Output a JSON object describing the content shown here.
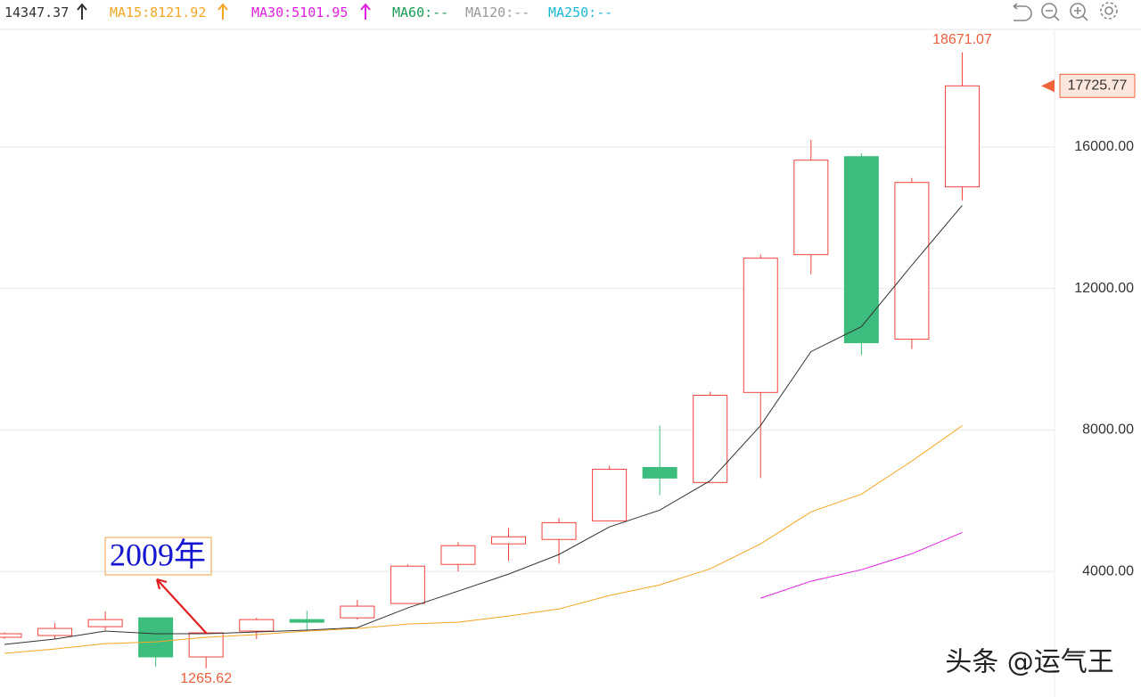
{
  "chart_data": {
    "type": "candlestick",
    "open": [
      2140,
      2190,
      2440,
      2690,
      1585,
      2315,
      2640,
      2690,
      3095,
      4200,
      4780,
      4905,
      5430,
      6940,
      6515,
      9060,
      12955,
      15725,
      10565,
      14870
    ],
    "high": [
      2280,
      2540,
      2870,
      2690,
      2265,
      2690,
      2890,
      3195,
      4200,
      4830,
      5230,
      5510,
      6990,
      8125,
      9080,
      12955,
      16200,
      15825,
      15120,
      18671.07
    ],
    "low": [
      2100,
      2090,
      2340,
      1310,
      1265.62,
      2090,
      2315,
      2640,
      3095,
      4000,
      4300,
      4220,
      5430,
      6160,
      6515,
      6640,
      12400,
      10115,
      10290,
      14490
    ],
    "close": [
      2240,
      2390,
      2640,
      1585,
      2265,
      2640,
      2565,
      3020,
      4150,
      4730,
      4980,
      5380,
      6890,
      6640,
      8980,
      12855,
      15625,
      10465,
      14995,
      17725.77
    ],
    "up_color": "#f0433c",
    "down_color": "#3dbd7d",
    "series": [
      {
        "color": "#333333",
        "value_label": "14347.37",
        "values": [
          1937,
          2090,
          2315,
          2240,
          2240,
          2290,
          2340,
          2415,
          2970,
          3445,
          3925,
          4480,
          5260,
          5735,
          6565,
          8125,
          10215,
          10920,
          12655,
          14347.37
        ]
      },
      {
        "name": "MA15:",
        "color": "#f5a623",
        "value_label": "8121.92",
        "values": [
          1685,
          1810,
          1960,
          2010,
          2140,
          2215,
          2315,
          2390,
          2515,
          2565,
          2740,
          2940,
          3320,
          3620,
          4075,
          4780,
          5685,
          6185,
          7120,
          8121.92
        ]
      },
      {
        "name": "MA30:",
        "color": "#e020e0",
        "value_label": "5101.95",
        "values": [
          null,
          null,
          null,
          null,
          null,
          null,
          null,
          null,
          null,
          null,
          null,
          null,
          null,
          null,
          null,
          3245,
          3725,
          4050,
          4500,
          5101.95
        ]
      },
      {
        "name": "MA60:",
        "color": "#1a9e55",
        "value_label": "--",
        "values": []
      },
      {
        "name": "MA120:",
        "color": "#999999",
        "value_label": "--",
        "values": []
      },
      {
        "name": "MA250:",
        "color": "#1bb8d6",
        "value_label": "--",
        "values": []
      }
    ],
    "ylim": [
      452,
      19321
    ],
    "yticks": [
      {
        "value": 4000,
        "label": "4000.00"
      },
      {
        "value": 8000,
        "label": "8000.00"
      },
      {
        "value": 12000,
        "label": "12000.00"
      },
      {
        "value": 16000,
        "label": "16000.00"
      }
    ],
    "grid": true,
    "max_label": "18671.07",
    "min_label": "1265.62",
    "last_label": "17725.77",
    "annotation": "2009年",
    "watermark": "头条 @运气王"
  }
}
